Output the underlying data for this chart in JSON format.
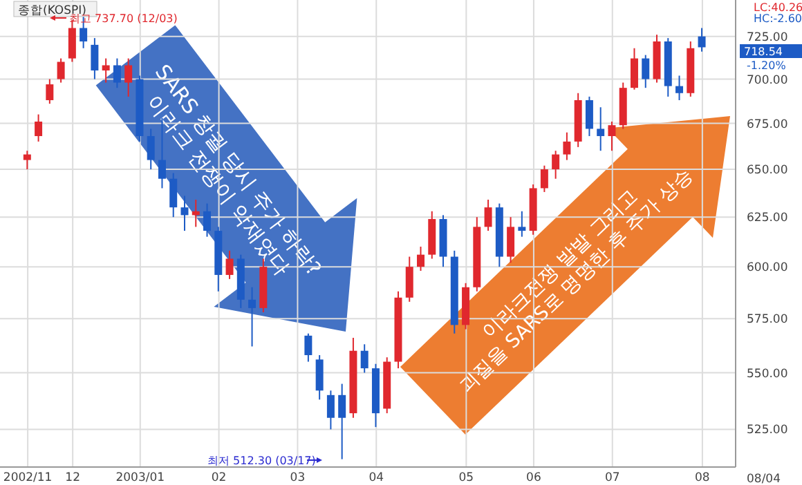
{
  "chart_data": {
    "type": "candlestick",
    "title": "종합(KOSPI)",
    "categories": [
      "2002/11",
      null,
      null,
      null,
      "12",
      null,
      null,
      null,
      null,
      null,
      "2003/01",
      null,
      null,
      null,
      null,
      null,
      null,
      "02",
      null,
      null,
      null,
      null,
      null,
      null,
      "03",
      null,
      null,
      null,
      null,
      null,
      null,
      "04",
      null,
      null,
      null,
      null,
      null,
      null,
      null,
      "05",
      null,
      null,
      null,
      null,
      null,
      "06",
      null,
      null,
      null,
      null,
      null,
      null,
      "07",
      null,
      null,
      null,
      null,
      null,
      null,
      null,
      "08"
    ],
    "ohlc": [
      [
        655,
        660,
        650,
        658
      ],
      [
        668,
        680,
        665,
        676
      ],
      [
        688,
        700,
        686,
        697
      ],
      [
        700,
        712,
        698,
        710
      ],
      [
        712,
        735,
        710,
        730
      ],
      [
        730,
        737.7,
        718,
        722
      ],
      [
        720,
        724,
        700,
        705
      ],
      [
        705,
        712,
        698,
        708
      ],
      [
        708,
        712,
        695,
        698
      ],
      [
        698,
        712,
        690,
        708
      ],
      [
        700,
        702,
        665,
        668
      ],
      [
        668,
        672,
        650,
        655
      ],
      [
        655,
        678,
        640,
        645
      ],
      [
        645,
        648,
        625,
        630
      ],
      [
        630,
        636,
        618,
        626
      ],
      [
        626,
        634,
        620,
        628
      ],
      [
        628,
        632,
        615,
        618
      ],
      [
        618,
        620,
        588,
        596
      ],
      [
        596,
        608,
        594,
        604
      ],
      [
        604,
        606,
        580,
        584
      ],
      [
        584,
        590,
        562,
        580
      ],
      [
        580,
        604,
        578,
        600
      ],
      null,
      null,
      null,
      [
        567,
        568,
        555,
        558
      ],
      [
        556,
        558,
        538,
        542
      ],
      [
        540,
        542,
        525,
        530
      ],
      [
        540,
        545,
        512.3,
        530
      ],
      [
        532,
        566,
        530,
        560
      ],
      [
        560,
        563,
        550,
        552
      ],
      [
        552,
        554,
        526,
        532
      ],
      [
        534,
        557,
        532,
        555
      ],
      [
        555,
        588,
        552,
        585
      ],
      [
        585,
        605,
        583,
        600
      ],
      [
        600,
        610,
        598,
        606
      ],
      [
        606,
        628,
        604,
        624
      ],
      [
        624,
        626,
        600,
        605
      ],
      [
        605,
        608,
        568,
        572
      ],
      [
        572,
        592,
        570,
        590
      ],
      [
        590,
        625,
        588,
        620
      ],
      [
        620,
        634,
        618,
        630
      ],
      [
        630,
        632,
        600,
        605
      ],
      [
        605,
        625,
        602,
        620
      ],
      [
        620,
        628,
        615,
        618
      ],
      [
        618,
        642,
        616,
        640
      ],
      [
        640,
        652,
        638,
        650
      ],
      [
        650,
        660,
        645,
        658
      ],
      [
        658,
        670,
        655,
        665
      ],
      [
        665,
        692,
        662,
        688
      ],
      [
        688,
        690,
        668,
        672
      ],
      [
        672,
        684,
        660,
        668
      ],
      [
        668,
        676,
        660,
        674
      ],
      [
        674,
        698,
        672,
        695
      ],
      [
        695,
        718,
        694,
        712
      ],
      [
        712,
        714,
        695,
        700
      ],
      [
        700,
        726,
        698,
        722
      ],
      [
        722,
        724,
        690,
        696
      ],
      [
        696,
        702,
        688,
        692
      ],
      [
        692,
        722,
        690,
        718
      ],
      [
        725,
        730,
        716,
        718.54
      ]
    ],
    "colors": [
      "#e0282e",
      "#e0282e",
      "#e0282e",
      "#e0282e",
      "#e0282e",
      "#1d5bc5",
      "#1d5bc5",
      "#e0282e",
      "#1d5bc5",
      "#e0282e",
      "#1d5bc5",
      "#1d5bc5",
      "#1d5bc5",
      "#1d5bc5",
      "#1d5bc5",
      "#e0282e",
      "#1d5bc5",
      "#1d5bc5",
      "#e0282e",
      "#1d5bc5",
      "#1d5bc5",
      "#e0282e",
      null,
      null,
      null,
      "#1d5bc5",
      "#1d5bc5",
      "#1d5bc5",
      "#1d5bc5",
      "#e0282e",
      "#1d5bc5",
      "#1d5bc5",
      "#e0282e",
      "#e0282e",
      "#e0282e",
      "#e0282e",
      "#e0282e",
      "#1d5bc5",
      "#1d5bc5",
      "#e0282e",
      "#e0282e",
      "#e0282e",
      "#1d5bc5",
      "#e0282e",
      "#1d5bc5",
      "#e0282e",
      "#e0282e",
      "#e0282e",
      "#e0282e",
      "#e0282e",
      "#1d5bc5",
      "#1d5bc5",
      "#e0282e",
      "#e0282e",
      "#e0282e",
      "#1d5bc5",
      "#e0282e",
      "#1d5bc5",
      "#1d5bc5",
      "#e0282e",
      "#1d5bc5"
    ],
    "ylim": [
      509,
      747
    ],
    "yticks": [
      {
        "value": 525,
        "label": "525.00"
      },
      {
        "value": 550,
        "label": "550.00"
      },
      {
        "value": 575,
        "label": "575.00"
      },
      {
        "value": 600,
        "label": "600.00"
      },
      {
        "value": 625,
        "label": "625.00"
      },
      {
        "value": 650,
        "label": "650.00"
      },
      {
        "value": 675,
        "label": "675.00"
      },
      {
        "value": 700,
        "label": "700.00"
      },
      {
        "value": 725,
        "label": "725.00"
      }
    ],
    "log": "y",
    "grid": true,
    "annotations": [
      "최고 737.70 (12/03)",
      "최저 512.30 (03/17)",
      "SARS 창궐 당시 주가 하락?\n이라크 전쟁이 악재였다",
      "이라크전쟁 발발 그리고\n괴질을 SARS로 명명한 후 주가 상승",
      "LC:40.26",
      "HC:-2.60",
      "718.54",
      "-1.20%",
      "08/04"
    ]
  }
}
